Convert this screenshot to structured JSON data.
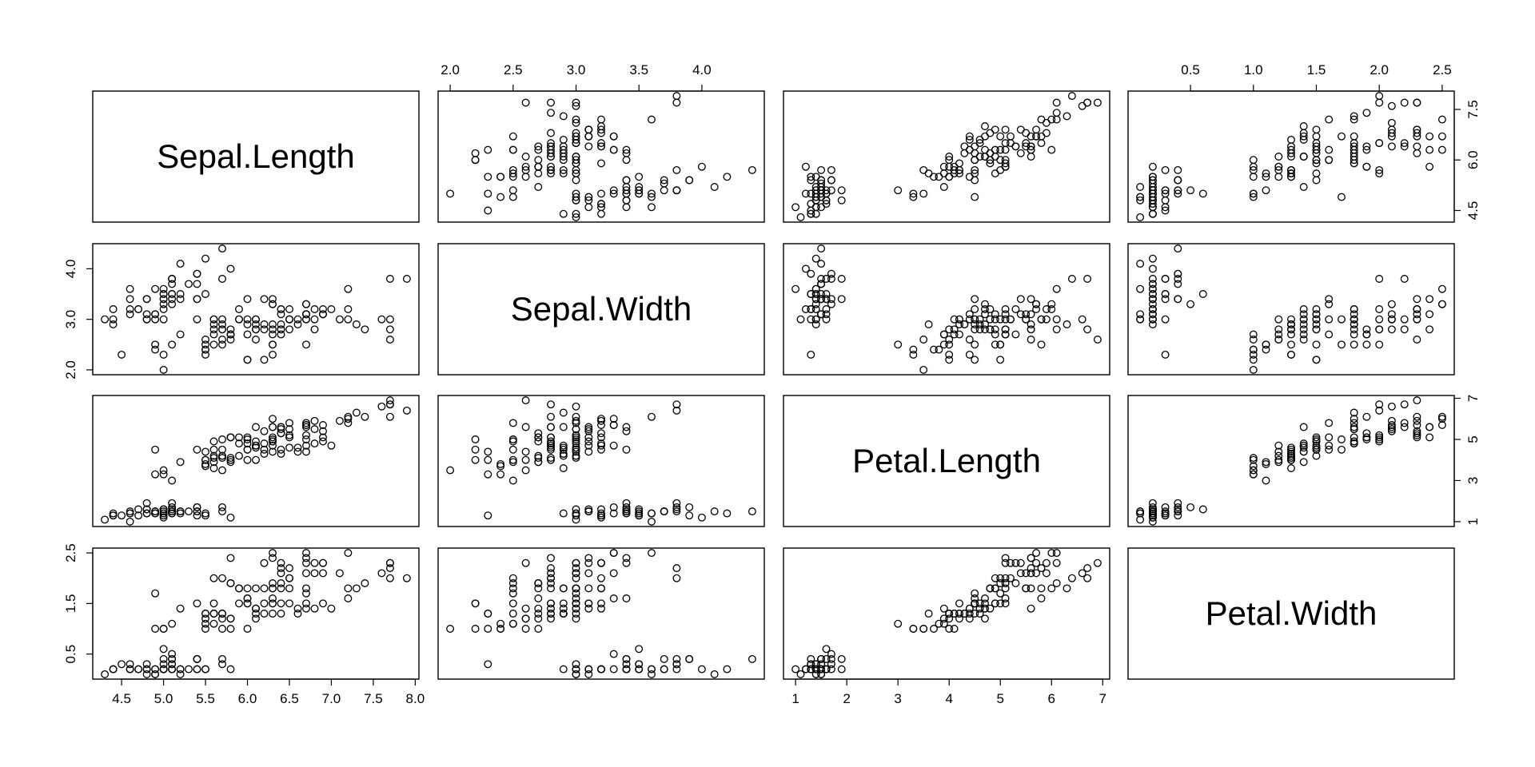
{
  "chart_data": {
    "type": "scatter",
    "title": "",
    "variables": [
      "Sepal.Length",
      "Sepal.Width",
      "Petal.Length",
      "Petal.Width"
    ],
    "ranges": [
      [
        4.3,
        7.9
      ],
      [
        2.0,
        4.4
      ],
      [
        1.0,
        6.9
      ],
      [
        0.1,
        2.5
      ]
    ],
    "ticks": [
      [
        "4.5",
        "5.0",
        "5.5",
        "6.0",
        "6.5",
        "7.0",
        "7.5",
        "8.0"
      ],
      [
        "2.0",
        "2.5",
        "3.0",
        "3.5",
        "4.0"
      ],
      [
        "1",
        "2",
        "3",
        "4",
        "5",
        "6",
        "7"
      ],
      [
        "0.5",
        "1.0",
        "1.5",
        "2.0",
        "2.5"
      ]
    ],
    "left_axis_ticks": {
      "1": [
        "2.0",
        "3.0",
        "4.0"
      ],
      "3": [
        "0.5",
        "1.5",
        "2.5"
      ]
    },
    "right_axis_ticks": {
      "0": [
        "4.5",
        "6.0",
        "7.5"
      ],
      "2": [
        "1",
        "3",
        "5",
        "7"
      ]
    },
    "grid": false,
    "legend": "none",
    "point_style": "open-circle",
    "observations": [
      [
        5.1,
        3.5,
        1.4,
        0.2
      ],
      [
        4.9,
        3.0,
        1.4,
        0.2
      ],
      [
        4.7,
        3.2,
        1.3,
        0.2
      ],
      [
        4.6,
        3.1,
        1.5,
        0.2
      ],
      [
        5.0,
        3.6,
        1.4,
        0.2
      ],
      [
        5.4,
        3.9,
        1.7,
        0.4
      ],
      [
        4.6,
        3.4,
        1.4,
        0.3
      ],
      [
        5.0,
        3.4,
        1.5,
        0.2
      ],
      [
        4.4,
        2.9,
        1.4,
        0.2
      ],
      [
        4.9,
        3.1,
        1.5,
        0.1
      ],
      [
        5.4,
        3.7,
        1.5,
        0.2
      ],
      [
        4.8,
        3.4,
        1.6,
        0.2
      ],
      [
        4.8,
        3.0,
        1.4,
        0.1
      ],
      [
        4.3,
        3.0,
        1.1,
        0.1
      ],
      [
        5.8,
        4.0,
        1.2,
        0.2
      ],
      [
        5.7,
        4.4,
        1.5,
        0.4
      ],
      [
        5.4,
        3.9,
        1.3,
        0.4
      ],
      [
        5.1,
        3.5,
        1.4,
        0.3
      ],
      [
        5.7,
        3.8,
        1.7,
        0.3
      ],
      [
        5.1,
        3.8,
        1.5,
        0.3
      ],
      [
        5.4,
        3.4,
        1.7,
        0.2
      ],
      [
        5.1,
        3.7,
        1.5,
        0.4
      ],
      [
        4.6,
        3.6,
        1.0,
        0.2
      ],
      [
        5.1,
        3.3,
        1.7,
        0.5
      ],
      [
        4.8,
        3.4,
        1.9,
        0.2
      ],
      [
        5.0,
        3.0,
        1.6,
        0.2
      ],
      [
        5.0,
        3.4,
        1.6,
        0.4
      ],
      [
        5.2,
        3.5,
        1.5,
        0.2
      ],
      [
        5.2,
        3.4,
        1.4,
        0.2
      ],
      [
        4.7,
        3.2,
        1.6,
        0.2
      ],
      [
        4.8,
        3.1,
        1.6,
        0.2
      ],
      [
        5.4,
        3.4,
        1.5,
        0.4
      ],
      [
        5.2,
        4.1,
        1.5,
        0.1
      ],
      [
        5.5,
        4.2,
        1.4,
        0.2
      ],
      [
        4.9,
        3.1,
        1.5,
        0.2
      ],
      [
        5.0,
        3.2,
        1.2,
        0.2
      ],
      [
        5.5,
        3.5,
        1.3,
        0.2
      ],
      [
        4.9,
        3.6,
        1.4,
        0.1
      ],
      [
        4.4,
        3.0,
        1.3,
        0.2
      ],
      [
        5.1,
        3.4,
        1.5,
        0.2
      ],
      [
        5.0,
        3.5,
        1.3,
        0.3
      ],
      [
        4.5,
        2.3,
        1.3,
        0.3
      ],
      [
        4.4,
        3.2,
        1.3,
        0.2
      ],
      [
        5.0,
        3.5,
        1.6,
        0.6
      ],
      [
        5.1,
        3.8,
        1.9,
        0.4
      ],
      [
        4.8,
        3.0,
        1.4,
        0.3
      ],
      [
        5.1,
        3.8,
        1.6,
        0.2
      ],
      [
        4.6,
        3.2,
        1.4,
        0.2
      ],
      [
        5.3,
        3.7,
        1.5,
        0.2
      ],
      [
        5.0,
        3.3,
        1.4,
        0.2
      ],
      [
        7.0,
        3.2,
        4.7,
        1.4
      ],
      [
        6.4,
        3.2,
        4.5,
        1.5
      ],
      [
        6.9,
        3.1,
        4.9,
        1.5
      ],
      [
        5.5,
        2.3,
        4.0,
        1.3
      ],
      [
        6.5,
        2.8,
        4.6,
        1.5
      ],
      [
        5.7,
        2.8,
        4.5,
        1.3
      ],
      [
        6.3,
        3.3,
        4.7,
        1.6
      ],
      [
        4.9,
        2.4,
        3.3,
        1.0
      ],
      [
        6.6,
        2.9,
        4.6,
        1.3
      ],
      [
        5.2,
        2.7,
        3.9,
        1.4
      ],
      [
        5.0,
        2.0,
        3.5,
        1.0
      ],
      [
        5.9,
        3.0,
        4.2,
        1.5
      ],
      [
        6.0,
        2.2,
        4.0,
        1.0
      ],
      [
        6.1,
        2.9,
        4.7,
        1.4
      ],
      [
        5.6,
        2.9,
        3.6,
        1.3
      ],
      [
        6.7,
        3.1,
        4.4,
        1.4
      ],
      [
        5.6,
        3.0,
        4.5,
        1.5
      ],
      [
        5.8,
        2.7,
        4.1,
        1.0
      ],
      [
        6.2,
        2.2,
        4.5,
        1.5
      ],
      [
        5.6,
        2.5,
        3.9,
        1.1
      ],
      [
        5.9,
        3.2,
        4.8,
        1.8
      ],
      [
        6.1,
        2.8,
        4.0,
        1.3
      ],
      [
        6.3,
        2.5,
        4.9,
        1.5
      ],
      [
        6.1,
        2.8,
        4.7,
        1.2
      ],
      [
        6.4,
        2.9,
        4.3,
        1.3
      ],
      [
        6.6,
        3.0,
        4.4,
        1.4
      ],
      [
        6.8,
        2.8,
        4.8,
        1.4
      ],
      [
        6.7,
        3.0,
        5.0,
        1.7
      ],
      [
        6.0,
        2.9,
        4.5,
        1.5
      ],
      [
        5.7,
        2.6,
        3.5,
        1.0
      ],
      [
        5.5,
        2.4,
        3.8,
        1.1
      ],
      [
        5.5,
        2.4,
        3.7,
        1.0
      ],
      [
        5.8,
        2.7,
        3.9,
        1.2
      ],
      [
        6.0,
        2.7,
        5.1,
        1.6
      ],
      [
        5.4,
        3.0,
        4.5,
        1.5
      ],
      [
        6.0,
        3.4,
        4.5,
        1.6
      ],
      [
        6.7,
        3.1,
        4.7,
        1.5
      ],
      [
        6.3,
        2.3,
        4.4,
        1.3
      ],
      [
        5.6,
        3.0,
        4.1,
        1.3
      ],
      [
        5.5,
        2.5,
        4.0,
        1.3
      ],
      [
        5.5,
        2.6,
        4.4,
        1.2
      ],
      [
        6.1,
        3.0,
        4.6,
        1.4
      ],
      [
        5.8,
        2.6,
        4.0,
        1.2
      ],
      [
        5.0,
        2.3,
        3.3,
        1.0
      ],
      [
        5.6,
        2.7,
        4.2,
        1.3
      ],
      [
        5.7,
        3.0,
        4.2,
        1.2
      ],
      [
        5.7,
        2.9,
        4.2,
        1.3
      ],
      [
        6.2,
        2.9,
        4.3,
        1.3
      ],
      [
        5.1,
        2.5,
        3.0,
        1.1
      ],
      [
        5.7,
        2.8,
        4.1,
        1.3
      ],
      [
        6.3,
        3.3,
        6.0,
        2.5
      ],
      [
        5.8,
        2.7,
        5.1,
        1.9
      ],
      [
        7.1,
        3.0,
        5.9,
        2.1
      ],
      [
        6.3,
        2.9,
        5.6,
        1.8
      ],
      [
        6.5,
        3.0,
        5.8,
        2.2
      ],
      [
        7.6,
        3.0,
        6.6,
        2.1
      ],
      [
        4.9,
        2.5,
        4.5,
        1.7
      ],
      [
        7.3,
        2.9,
        6.3,
        1.8
      ],
      [
        6.7,
        2.5,
        5.8,
        1.8
      ],
      [
        7.2,
        3.6,
        6.1,
        2.5
      ],
      [
        6.5,
        3.2,
        5.1,
        2.0
      ],
      [
        6.4,
        2.7,
        5.3,
        1.9
      ],
      [
        6.8,
        3.0,
        5.5,
        2.1
      ],
      [
        5.7,
        2.5,
        5.0,
        2.0
      ],
      [
        5.8,
        2.8,
        5.1,
        2.4
      ],
      [
        6.4,
        3.2,
        5.3,
        2.3
      ],
      [
        6.5,
        3.0,
        5.5,
        1.8
      ],
      [
        7.7,
        3.8,
        6.7,
        2.2
      ],
      [
        7.7,
        2.6,
        6.9,
        2.3
      ],
      [
        6.0,
        2.2,
        5.0,
        1.5
      ],
      [
        6.9,
        3.2,
        5.7,
        2.3
      ],
      [
        5.6,
        2.8,
        4.9,
        2.0
      ],
      [
        7.7,
        2.8,
        6.7,
        2.0
      ],
      [
        6.3,
        2.7,
        4.9,
        1.8
      ],
      [
        6.7,
        3.3,
        5.7,
        2.1
      ],
      [
        7.2,
        3.2,
        6.0,
        1.8
      ],
      [
        6.2,
        2.8,
        4.8,
        1.8
      ],
      [
        6.1,
        3.0,
        4.9,
        1.8
      ],
      [
        6.4,
        2.8,
        5.6,
        2.1
      ],
      [
        7.2,
        3.0,
        5.8,
        1.6
      ],
      [
        7.4,
        2.8,
        6.1,
        1.9
      ],
      [
        7.9,
        3.8,
        6.4,
        2.0
      ],
      [
        6.4,
        2.8,
        5.6,
        2.2
      ],
      [
        6.3,
        2.8,
        5.1,
        1.5
      ],
      [
        6.1,
        2.6,
        5.6,
        1.4
      ],
      [
        7.7,
        3.0,
        6.1,
        2.3
      ],
      [
        6.3,
        3.4,
        5.6,
        2.4
      ],
      [
        6.4,
        3.1,
        5.5,
        1.8
      ],
      [
        6.0,
        3.0,
        4.8,
        1.8
      ],
      [
        6.9,
        3.1,
        5.4,
        2.1
      ],
      [
        6.7,
        3.1,
        5.6,
        2.4
      ],
      [
        6.9,
        3.1,
        5.1,
        2.3
      ],
      [
        5.8,
        2.7,
        5.1,
        1.9
      ],
      [
        6.8,
        3.2,
        5.9,
        2.3
      ],
      [
        6.7,
        3.3,
        5.7,
        2.5
      ],
      [
        6.7,
        3.0,
        5.2,
        2.3
      ],
      [
        6.3,
        2.5,
        5.0,
        1.9
      ],
      [
        6.5,
        3.0,
        5.2,
        2.0
      ],
      [
        6.2,
        3.4,
        5.4,
        2.3
      ],
      [
        5.9,
        3.0,
        5.1,
        1.8
      ]
    ]
  }
}
